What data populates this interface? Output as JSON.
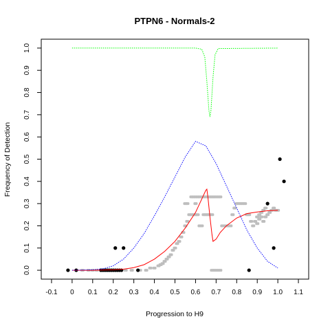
{
  "chart_data": {
    "type": "scatter",
    "title": "PTPN6 - Normals-2",
    "xlabel": "Progression to H9",
    "ylabel": "Frequency of Detection",
    "xlim": [
      -0.15,
      1.15
    ],
    "ylim": [
      -0.04,
      1.04
    ],
    "x_ticks": [
      "-0.1",
      "0",
      "0.1",
      "0.2",
      "0.3",
      "0.4",
      "0.5",
      "0.6",
      "0.7",
      "0.8",
      "0.9",
      "1.0",
      "1.1"
    ],
    "y_ticks": [
      "0.0",
      "0.1",
      "0.2",
      "0.3",
      "0.4",
      "0.5",
      "0.6",
      "0.7",
      "0.8",
      "0.9",
      "1.0"
    ],
    "series": [
      {
        "kind": "points",
        "color": "#000000",
        "points": [
          [
            -0.02,
            0.0
          ],
          [
            0.02,
            0.0
          ],
          [
            0.14,
            0.0
          ],
          [
            0.15,
            0.0
          ],
          [
            0.16,
            0.0
          ],
          [
            0.17,
            0.0
          ],
          [
            0.18,
            0.0
          ],
          [
            0.19,
            0.0
          ],
          [
            0.2,
            0.0
          ],
          [
            0.21,
            0.0
          ],
          [
            0.22,
            0.0
          ],
          [
            0.23,
            0.0
          ],
          [
            0.24,
            0.0
          ],
          [
            0.32,
            0.0
          ],
          [
            0.21,
            0.1
          ],
          [
            0.25,
            0.1
          ],
          [
            0.86,
            0.0
          ],
          [
            0.95,
            0.3
          ],
          [
            0.98,
            0.1
          ],
          [
            1.01,
            0.5
          ],
          [
            1.03,
            0.4
          ]
        ]
      },
      {
        "kind": "points",
        "color": "#bebebe",
        "points": [
          [
            0.05,
            0.0
          ],
          [
            0.08,
            0.0
          ],
          [
            0.1,
            0.0
          ],
          [
            0.12,
            0.0
          ],
          [
            0.18,
            0.0
          ],
          [
            0.22,
            0.0
          ],
          [
            0.26,
            0.0
          ],
          [
            0.29,
            0.0
          ],
          [
            0.33,
            0.0
          ],
          [
            0.36,
            0.0
          ],
          [
            0.38,
            0.01
          ],
          [
            0.4,
            0.01
          ],
          [
            0.42,
            0.02
          ],
          [
            0.43,
            0.025
          ],
          [
            0.44,
            0.03
          ],
          [
            0.45,
            0.04
          ],
          [
            0.46,
            0.05
          ],
          [
            0.47,
            0.06
          ],
          [
            0.48,
            0.07
          ],
          [
            0.49,
            0.09
          ],
          [
            0.5,
            0.1
          ],
          [
            0.51,
            0.12
          ],
          [
            0.52,
            0.13
          ],
          [
            0.53,
            0.15
          ],
          [
            0.54,
            0.17
          ],
          [
            0.55,
            0.2
          ],
          [
            0.56,
            0.22
          ],
          [
            0.57,
            0.25
          ],
          [
            0.58,
            0.25
          ],
          [
            0.59,
            0.25
          ],
          [
            0.6,
            0.25
          ],
          [
            0.61,
            0.25
          ],
          [
            0.62,
            0.2
          ],
          [
            0.63,
            0.2
          ],
          [
            0.6,
            0.3
          ],
          [
            0.61,
            0.33
          ],
          [
            0.62,
            0.33
          ],
          [
            0.63,
            0.33
          ],
          [
            0.64,
            0.33
          ],
          [
            0.65,
            0.33
          ],
          [
            0.66,
            0.33
          ],
          [
            0.67,
            0.33
          ],
          [
            0.68,
            0.33
          ],
          [
            0.69,
            0.33
          ],
          [
            0.7,
            0.33
          ],
          [
            0.71,
            0.33
          ],
          [
            0.72,
            0.33
          ],
          [
            0.58,
            0.33
          ],
          [
            0.59,
            0.33
          ],
          [
            0.6,
            0.33
          ],
          [
            0.64,
            0.25
          ],
          [
            0.65,
            0.25
          ],
          [
            0.66,
            0.25
          ],
          [
            0.67,
            0.25
          ],
          [
            0.68,
            0.25
          ],
          [
            0.55,
            0.3
          ],
          [
            0.56,
            0.3
          ],
          [
            0.68,
            0.0
          ],
          [
            0.69,
            0.0
          ],
          [
            0.7,
            0.0
          ],
          [
            0.71,
            0.0
          ],
          [
            0.72,
            0.0
          ],
          [
            0.73,
            0.2
          ],
          [
            0.74,
            0.2
          ],
          [
            0.75,
            0.2
          ],
          [
            0.76,
            0.2
          ],
          [
            0.77,
            0.2
          ],
          [
            0.78,
            0.25
          ],
          [
            0.79,
            0.28
          ],
          [
            0.8,
            0.3
          ],
          [
            0.81,
            0.3
          ],
          [
            0.82,
            0.3
          ],
          [
            0.83,
            0.3
          ],
          [
            0.84,
            0.3
          ],
          [
            0.85,
            0.25
          ],
          [
            0.86,
            0.25
          ],
          [
            0.87,
            0.22
          ],
          [
            0.88,
            0.2
          ],
          [
            0.89,
            0.22
          ],
          [
            0.9,
            0.24
          ],
          [
            0.91,
            0.25
          ],
          [
            0.92,
            0.26
          ],
          [
            0.93,
            0.27
          ],
          [
            0.94,
            0.28
          ],
          [
            0.95,
            0.25
          ],
          [
            0.96,
            0.26
          ],
          [
            0.97,
            0.27
          ],
          [
            0.98,
            0.28
          ],
          [
            0.99,
            0.27
          ],
          [
            1.0,
            0.27
          ],
          [
            0.93,
            0.22
          ],
          [
            0.94,
            0.24
          ],
          [
            0.9,
            0.21
          ],
          [
            0.91,
            0.23
          ],
          [
            0.92,
            0.24
          ]
        ]
      },
      {
        "kind": "line",
        "style": "solid",
        "color": "#ff0000",
        "points": [
          [
            0.0,
            0.0
          ],
          [
            0.1,
            0.0
          ],
          [
            0.2,
            0.002
          ],
          [
            0.25,
            0.005
          ],
          [
            0.3,
            0.012
          ],
          [
            0.35,
            0.025
          ],
          [
            0.4,
            0.05
          ],
          [
            0.45,
            0.085
          ],
          [
            0.5,
            0.13
          ],
          [
            0.55,
            0.19
          ],
          [
            0.6,
            0.26
          ],
          [
            0.63,
            0.32
          ],
          [
            0.65,
            0.36
          ],
          [
            0.655,
            0.365
          ],
          [
            0.66,
            0.33
          ],
          [
            0.67,
            0.24
          ],
          [
            0.68,
            0.16
          ],
          [
            0.685,
            0.13
          ],
          [
            0.7,
            0.14
          ],
          [
            0.72,
            0.17
          ],
          [
            0.75,
            0.2
          ],
          [
            0.8,
            0.235
          ],
          [
            0.85,
            0.255
          ],
          [
            0.9,
            0.262
          ],
          [
            0.95,
            0.268
          ],
          [
            1.0,
            0.27
          ]
        ]
      },
      {
        "kind": "line",
        "style": "dotted",
        "color": "#0000ff",
        "points": [
          [
            0.0,
            0.0
          ],
          [
            0.1,
            0.002
          ],
          [
            0.15,
            0.006
          ],
          [
            0.2,
            0.02
          ],
          [
            0.25,
            0.05
          ],
          [
            0.3,
            0.1
          ],
          [
            0.35,
            0.165
          ],
          [
            0.4,
            0.245
          ],
          [
            0.45,
            0.33
          ],
          [
            0.5,
            0.42
          ],
          [
            0.55,
            0.51
          ],
          [
            0.6,
            0.58
          ],
          [
            0.65,
            0.56
          ],
          [
            0.7,
            0.48
          ],
          [
            0.75,
            0.38
          ],
          [
            0.8,
            0.28
          ],
          [
            0.85,
            0.18
          ],
          [
            0.9,
            0.1
          ],
          [
            0.95,
            0.04
          ],
          [
            1.0,
            0.01
          ]
        ]
      },
      {
        "kind": "line",
        "style": "dotted",
        "color": "#00ff00",
        "points": [
          [
            0.0,
            1.0
          ],
          [
            0.6,
            1.0
          ],
          [
            0.63,
            0.995
          ],
          [
            0.645,
            0.96
          ],
          [
            0.655,
            0.85
          ],
          [
            0.665,
            0.72
          ],
          [
            0.67,
            0.69
          ],
          [
            0.675,
            0.72
          ],
          [
            0.685,
            0.87
          ],
          [
            0.695,
            0.97
          ],
          [
            0.71,
            0.998
          ],
          [
            1.0,
            1.0
          ]
        ]
      }
    ]
  }
}
